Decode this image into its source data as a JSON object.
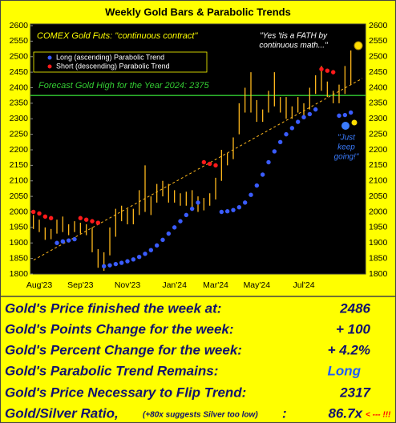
{
  "chart_data": {
    "type": "hilo",
    "title": "Weekly Gold Bars & Parabolic Trends",
    "annotations": {
      "source": "COMEX Gold Futs:  \"continuous contract\"",
      "quote_1": "\"Yes 'tis a FATH by",
      "quote_2": "continuous math...\"",
      "keep_1": "\"Just",
      "keep_2": "keep",
      "keep_3": "going!\""
    },
    "categories": [
      null,
      "Aug'23",
      null,
      null,
      null,
      null,
      null,
      null,
      "Sep'23",
      null,
      null,
      null,
      null,
      null,
      null,
      null,
      "Nov'23",
      null,
      null,
      null,
      null,
      null,
      null,
      null,
      "Jan'24",
      null,
      null,
      null,
      null,
      null,
      null,
      "Mar'24",
      null,
      null,
      null,
      null,
      null,
      null,
      "May'24",
      null,
      null,
      null,
      null,
      null,
      null,
      null,
      "Jul'24",
      null,
      null,
      null,
      null,
      null,
      null,
      null,
      null,
      null,
      null
    ],
    "high": [
      1990,
      1975,
      1950,
      1945,
      1975,
      1985,
      1960,
      1970,
      1965,
      1960,
      1950,
      1880,
      1870,
      1950,
      2010,
      2020,
      2010,
      2010,
      2070,
      2150,
      2050,
      2090,
      2100,
      2090,
      2070,
      2060,
      2065,
      2070,
      2050,
      2045,
      2060,
      2110,
      2200,
      2190,
      2240,
      2350,
      2400,
      2450,
      2360,
      2330,
      2390,
      2450,
      2370,
      2370,
      2340,
      2370,
      2350,
      2400,
      2440,
      2470,
      2420,
      2390,
      2410,
      2470,
      2520,
      null,
      null
    ],
    "low": [
      1945,
      1935,
      1910,
      1912,
      1930,
      1935,
      1925,
      1935,
      1930,
      1925,
      1870,
      1820,
      1810,
      1860,
      1920,
      1970,
      1960,
      1960,
      1990,
      2000,
      1990,
      2030,
      2050,
      2030,
      2030,
      2020,
      2020,
      2010,
      2000,
      2005,
      2020,
      2040,
      2100,
      2150,
      2170,
      2250,
      2320,
      2320,
      2290,
      2290,
      2320,
      2340,
      2320,
      2300,
      2300,
      2320,
      2310,
      2330,
      2380,
      2390,
      2370,
      2350,
      2350,
      2380,
      2410,
      null,
      null
    ],
    "bar_color": "#ffb81c",
    "series": [
      {
        "name": "Long (ascending) Parabolic Trend",
        "color": "#3a5cff",
        "values": [
          null,
          null,
          null,
          null,
          1900,
          1905,
          1908,
          1912,
          null,
          null,
          null,
          null,
          1825,
          1828,
          1832,
          1836,
          1841,
          1847,
          1855,
          1865,
          1877,
          1892,
          1910,
          1930,
          1950,
          1970,
          1990,
          2010,
          2030,
          null,
          null,
          null,
          2000,
          2002,
          2006,
          2015,
          2030,
          2055,
          2085,
          2120,
          2160,
          2195,
          2225,
          2250,
          2270,
          2290,
          2305,
          2315,
          2330,
          null,
          null,
          null,
          2310,
          2312,
          2320,
          null,
          null
        ]
      },
      {
        "name": "Short (descending) Parabolic Trend",
        "color": "#ff1a1a",
        "values": [
          2000,
          1995,
          1985,
          1980,
          null,
          null,
          null,
          null,
          1980,
          1975,
          1970,
          1965,
          null,
          null,
          null,
          null,
          null,
          null,
          null,
          null,
          null,
          null,
          null,
          null,
          null,
          null,
          null,
          null,
          null,
          2160,
          2155,
          2150,
          null,
          null,
          null,
          null,
          null,
          null,
          null,
          null,
          null,
          null,
          null,
          null,
          null,
          null,
          null,
          null,
          null,
          2460,
          2455,
          2450,
          null,
          null,
          null,
          null,
          null
        ]
      }
    ],
    "trend_line": {
      "start": 1845,
      "end": 2430,
      "color": "#ffb81c"
    },
    "forecast": {
      "label": "Forecast Gold High for the Year 2024:  2375",
      "value": 2375,
      "color": "#33cc33"
    },
    "ylim": [
      1800,
      2600
    ],
    "yticks": [
      1800,
      1850,
      1900,
      1950,
      2000,
      2050,
      2100,
      2150,
      2200,
      2250,
      2300,
      2350,
      2400,
      2450,
      2500,
      2550,
      2600
    ],
    "grid": false
  },
  "stats": {
    "rows": [
      {
        "label": "Gold's Price finished the week at:",
        "value": "2486"
      },
      {
        "label": "Gold's Points Change for the week:",
        "value": "+ 100"
      },
      {
        "label": "Gold's Percent Change for the week:",
        "value": "+ 4.2%"
      },
      {
        "label": "Gold's Parabolic Trend Remains:",
        "value": "Long"
      },
      {
        "label": "Gold's Price Necessary to Flip Trend:",
        "value": "2317"
      }
    ],
    "ratio": {
      "label": "Gold/Silver Ratio,",
      "note": "(+80x suggests Silver too low)",
      "colon": ":",
      "value": "86.7x",
      "alert": "< --- !!!"
    }
  }
}
